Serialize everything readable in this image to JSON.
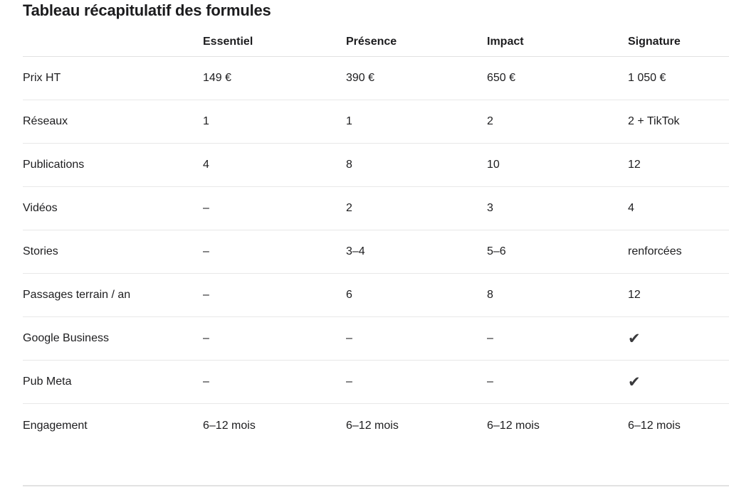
{
  "title": "Tableau récapitulatif des formules",
  "table": {
    "columns": [
      "",
      "Essentiel",
      "Présence",
      "Impact",
      "Signature"
    ],
    "rows": [
      {
        "label": "Prix HT",
        "values": [
          "149 €",
          "390 €",
          "650 €",
          "1 050 €"
        ]
      },
      {
        "label": "Réseaux",
        "values": [
          "1",
          "1",
          "2",
          "2 + TikTok"
        ]
      },
      {
        "label": "Publications",
        "values": [
          "4",
          "8",
          "10",
          "12"
        ]
      },
      {
        "label": "Vidéos",
        "values": [
          "–",
          "2",
          "3",
          "4"
        ]
      },
      {
        "label": "Stories",
        "values": [
          "–",
          "3–4",
          "5–6",
          "renforcées"
        ]
      },
      {
        "label": "Passages terrain / an",
        "values": [
          "–",
          "6",
          "8",
          "12"
        ]
      },
      {
        "label": "Google Business",
        "values": [
          "–",
          "–",
          "–",
          "✔"
        ]
      },
      {
        "label": "Pub Meta",
        "values": [
          "–",
          "–",
          "–",
          "✔"
        ]
      },
      {
        "label": "Engagement",
        "values": [
          "6–12 mois",
          "6–12 mois",
          "6–12 mois",
          "6–12 mois"
        ]
      }
    ]
  },
  "icons": {
    "check": "✔"
  },
  "colors": {
    "text": "#1d1d1f",
    "check": "#3a3a3c",
    "separator": "#e8e8e8",
    "header_separator": "#e2e2e2",
    "background": "#ffffff"
  },
  "chart_data": {
    "type": "table",
    "title": "Tableau récapitulatif des formules",
    "columns": [
      "",
      "Essentiel",
      "Présence",
      "Impact",
      "Signature"
    ],
    "rows": [
      [
        "Prix HT",
        "149 €",
        "390 €",
        "650 €",
        "1 050 €"
      ],
      [
        "Réseaux",
        "1",
        "1",
        "2",
        "2 + TikTok"
      ],
      [
        "Publications",
        "4",
        "8",
        "10",
        "12"
      ],
      [
        "Vidéos",
        "–",
        "2",
        "3",
        "4"
      ],
      [
        "Stories",
        "–",
        "3–4",
        "5–6",
        "renforcées"
      ],
      [
        "Passages terrain / an",
        "–",
        "6",
        "8",
        "12"
      ],
      [
        "Google Business",
        "–",
        "–",
        "–",
        "✔"
      ],
      [
        "Pub Meta",
        "–",
        "–",
        "–",
        "✔"
      ],
      [
        "Engagement",
        "6–12 mois",
        "6–12 mois",
        "6–12 mois",
        "6–12 mois"
      ]
    ]
  }
}
